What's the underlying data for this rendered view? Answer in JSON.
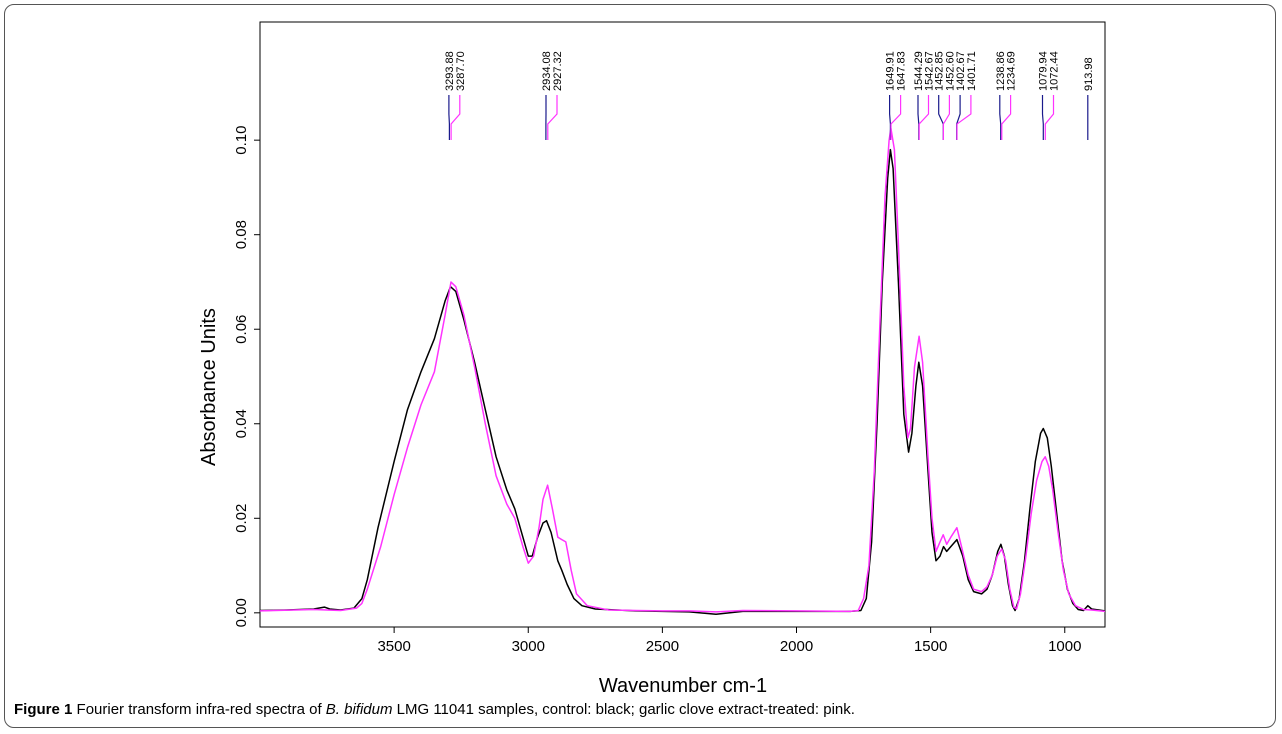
{
  "figure": {
    "label": "Figure 1",
    "caption_pre": " Fourier transform infra-red spectra of ",
    "caption_species": "B. bifidum",
    "caption_post": " LMG 11041 samples, control: black; garlic clove extract-treated: pink."
  },
  "colors": {
    "control": "#000000",
    "treated": "#ff33ff",
    "marker_control": "#1a1a8c"
  },
  "chart_data": {
    "type": "line",
    "xlabel": "Wavenumber cm-1",
    "ylabel": "Absorbance Units",
    "xlim": [
      4000,
      850
    ],
    "ylim": [
      -0.003,
      0.125
    ],
    "xticks": [
      3500,
      3000,
      2500,
      2000,
      1500,
      1000
    ],
    "xtick_labels": [
      "3500",
      "3000",
      "2500",
      "2000",
      "1500",
      "1000"
    ],
    "yticks": [
      0,
      0.02,
      0.04,
      0.06,
      0.08,
      0.1
    ],
    "ytick_labels": [
      "0.00",
      "0.02",
      "0.04",
      "0.06",
      "0.08",
      "0.10"
    ],
    "series": [
      {
        "key": "control",
        "color": "#000000",
        "points": [
          [
            4000,
            0.0005
          ],
          [
            3900,
            0.0006
          ],
          [
            3800,
            0.0008
          ],
          [
            3760,
            0.0012
          ],
          [
            3740,
            0.0008
          ],
          [
            3700,
            0.0006
          ],
          [
            3650,
            0.001
          ],
          [
            3620,
            0.003
          ],
          [
            3600,
            0.007
          ],
          [
            3560,
            0.018
          ],
          [
            3500,
            0.032
          ],
          [
            3450,
            0.043
          ],
          [
            3400,
            0.051
          ],
          [
            3350,
            0.058
          ],
          [
            3310,
            0.066
          ],
          [
            3290,
            0.069
          ],
          [
            3270,
            0.068
          ],
          [
            3240,
            0.062
          ],
          [
            3200,
            0.053
          ],
          [
            3160,
            0.043
          ],
          [
            3120,
            0.033
          ],
          [
            3080,
            0.026
          ],
          [
            3050,
            0.022
          ],
          [
            3020,
            0.016
          ],
          [
            3000,
            0.012
          ],
          [
            2985,
            0.012
          ],
          [
            2965,
            0.016
          ],
          [
            2945,
            0.019
          ],
          [
            2932,
            0.0195
          ],
          [
            2915,
            0.017
          ],
          [
            2890,
            0.011
          ],
          [
            2875,
            0.009
          ],
          [
            2855,
            0.006
          ],
          [
            2830,
            0.003
          ],
          [
            2800,
            0.0015
          ],
          [
            2750,
            0.0008
          ],
          [
            2600,
            0.0004
          ],
          [
            2400,
            0.0002
          ],
          [
            2300,
            -0.0003
          ],
          [
            2200,
            0.0003
          ],
          [
            2000,
            0.0003
          ],
          [
            1800,
            0.0003
          ],
          [
            1760,
            0.0005
          ],
          [
            1740,
            0.003
          ],
          [
            1720,
            0.015
          ],
          [
            1700,
            0.04
          ],
          [
            1680,
            0.07
          ],
          [
            1660,
            0.092
          ],
          [
            1650,
            0.098
          ],
          [
            1640,
            0.094
          ],
          [
            1620,
            0.07
          ],
          [
            1600,
            0.042
          ],
          [
            1582,
            0.034
          ],
          [
            1570,
            0.038
          ],
          [
            1555,
            0.048
          ],
          [
            1544,
            0.053
          ],
          [
            1530,
            0.048
          ],
          [
            1510,
            0.03
          ],
          [
            1495,
            0.017
          ],
          [
            1480,
            0.011
          ],
          [
            1465,
            0.012
          ],
          [
            1452,
            0.014
          ],
          [
            1440,
            0.013
          ],
          [
            1425,
            0.014
          ],
          [
            1402,
            0.0155
          ],
          [
            1380,
            0.012
          ],
          [
            1360,
            0.007
          ],
          [
            1340,
            0.0045
          ],
          [
            1310,
            0.004
          ],
          [
            1290,
            0.005
          ],
          [
            1270,
            0.008
          ],
          [
            1250,
            0.013
          ],
          [
            1238,
            0.0145
          ],
          [
            1225,
            0.012
          ],
          [
            1210,
            0.006
          ],
          [
            1195,
            0.0015
          ],
          [
            1185,
            0.0005
          ],
          [
            1170,
            0.003
          ],
          [
            1150,
            0.011
          ],
          [
            1130,
            0.022
          ],
          [
            1110,
            0.032
          ],
          [
            1090,
            0.038
          ],
          [
            1080,
            0.039
          ],
          [
            1065,
            0.037
          ],
          [
            1050,
            0.031
          ],
          [
            1030,
            0.021
          ],
          [
            1010,
            0.011
          ],
          [
            990,
            0.005
          ],
          [
            970,
            0.002
          ],
          [
            950,
            0.0007
          ],
          [
            930,
            0.0005
          ],
          [
            914,
            0.0015
          ],
          [
            900,
            0.0008
          ],
          [
            850,
            0.0004
          ]
        ]
      },
      {
        "key": "treated",
        "color": "#ff33ff",
        "points": [
          [
            4000,
            0.0004
          ],
          [
            3800,
            0.0007
          ],
          [
            3700,
            0.0005
          ],
          [
            3640,
            0.001
          ],
          [
            3620,
            0.002
          ],
          [
            3600,
            0.005
          ],
          [
            3550,
            0.014
          ],
          [
            3500,
            0.025
          ],
          [
            3450,
            0.035
          ],
          [
            3400,
            0.044
          ],
          [
            3350,
            0.051
          ],
          [
            3310,
            0.063
          ],
          [
            3288,
            0.07
          ],
          [
            3270,
            0.069
          ],
          [
            3240,
            0.063
          ],
          [
            3200,
            0.052
          ],
          [
            3160,
            0.04
          ],
          [
            3120,
            0.029
          ],
          [
            3080,
            0.023
          ],
          [
            3050,
            0.02
          ],
          [
            3020,
            0.014
          ],
          [
            3000,
            0.0105
          ],
          [
            2980,
            0.012
          ],
          [
            2960,
            0.018
          ],
          [
            2945,
            0.024
          ],
          [
            2928,
            0.027
          ],
          [
            2910,
            0.022
          ],
          [
            2890,
            0.016
          ],
          [
            2875,
            0.0155
          ],
          [
            2860,
            0.015
          ],
          [
            2840,
            0.009
          ],
          [
            2820,
            0.004
          ],
          [
            2780,
            0.0015
          ],
          [
            2700,
            0.0006
          ],
          [
            2500,
            0.0004
          ],
          [
            2400,
            0.0004
          ],
          [
            2300,
            0.0002
          ],
          [
            2200,
            0.0005
          ],
          [
            2000,
            0.0004
          ],
          [
            1800,
            0.0003
          ],
          [
            1770,
            0.0005
          ],
          [
            1750,
            0.003
          ],
          [
            1730,
            0.01
          ],
          [
            1710,
            0.03
          ],
          [
            1690,
            0.06
          ],
          [
            1670,
            0.088
          ],
          [
            1655,
            0.1
          ],
          [
            1648,
            0.1025
          ],
          [
            1635,
            0.098
          ],
          [
            1620,
            0.078
          ],
          [
            1600,
            0.048
          ],
          [
            1585,
            0.037
          ],
          [
            1575,
            0.039
          ],
          [
            1560,
            0.052
          ],
          [
            1543,
            0.0585
          ],
          [
            1530,
            0.053
          ],
          [
            1510,
            0.033
          ],
          [
            1495,
            0.02
          ],
          [
            1480,
            0.013
          ],
          [
            1465,
            0.015
          ],
          [
            1453,
            0.0165
          ],
          [
            1440,
            0.0145
          ],
          [
            1425,
            0.016
          ],
          [
            1402,
            0.018
          ],
          [
            1385,
            0.014
          ],
          [
            1360,
            0.008
          ],
          [
            1340,
            0.005
          ],
          [
            1310,
            0.0045
          ],
          [
            1290,
            0.0055
          ],
          [
            1270,
            0.008
          ],
          [
            1252,
            0.012
          ],
          [
            1235,
            0.0135
          ],
          [
            1220,
            0.011
          ],
          [
            1205,
            0.005
          ],
          [
            1190,
            0.0012
          ],
          [
            1180,
            0.0008
          ],
          [
            1165,
            0.004
          ],
          [
            1145,
            0.012
          ],
          [
            1125,
            0.021
          ],
          [
            1105,
            0.028
          ],
          [
            1085,
            0.032
          ],
          [
            1073,
            0.033
          ],
          [
            1060,
            0.031
          ],
          [
            1045,
            0.026
          ],
          [
            1025,
            0.017
          ],
          [
            1005,
            0.009
          ],
          [
            985,
            0.004
          ],
          [
            960,
            0.0015
          ],
          [
            930,
            0.0007
          ],
          [
            900,
            0.0006
          ],
          [
            850,
            0.0003
          ]
        ]
      }
    ],
    "peak_labels": [
      {
        "text": "3293.88",
        "wavenumber": 3293.88,
        "label_wavenumber": 3296,
        "series": "control"
      },
      {
        "text": "3287.70",
        "wavenumber": 3287.7,
        "label_wavenumber": 3255,
        "series": "treated"
      },
      {
        "text": "2934.08",
        "wavenumber": 2934.08,
        "label_wavenumber": 2934,
        "series": "control"
      },
      {
        "text": "2927.32",
        "wavenumber": 2927.32,
        "label_wavenumber": 2893,
        "series": "treated"
      },
      {
        "text": "1649.91",
        "wavenumber": 1649.91,
        "label_wavenumber": 1653,
        "series": "control"
      },
      {
        "text": "1647.83",
        "wavenumber": 1647.83,
        "label_wavenumber": 1612,
        "series": "treated"
      },
      {
        "text": "1544.29",
        "wavenumber": 1544.29,
        "label_wavenumber": 1547,
        "series": "control"
      },
      {
        "text": "1542.67",
        "wavenumber": 1542.67,
        "label_wavenumber": 1508,
        "series": "treated"
      },
      {
        "text": "1452.85",
        "wavenumber": 1452.85,
        "label_wavenumber": 1470,
        "series": "control"
      },
      {
        "text": "1452.60",
        "wavenumber": 1452.6,
        "label_wavenumber": 1430,
        "series": "treated"
      },
      {
        "text": "1402.67",
        "wavenumber": 1402.67,
        "label_wavenumber": 1390,
        "series": "control"
      },
      {
        "text": "1401.71",
        "wavenumber": 1401.71,
        "label_wavenumber": 1350,
        "series": "treated"
      },
      {
        "text": "1238.86",
        "wavenumber": 1238.86,
        "label_wavenumber": 1242,
        "series": "control"
      },
      {
        "text": "1234.69",
        "wavenumber": 1234.69,
        "label_wavenumber": 1202,
        "series": "treated"
      },
      {
        "text": "1079.94",
        "wavenumber": 1079.94,
        "label_wavenumber": 1083,
        "series": "control"
      },
      {
        "text": "1072.44",
        "wavenumber": 1072.44,
        "label_wavenumber": 1042,
        "series": "treated"
      },
      {
        "text": "913.98",
        "wavenumber": 913.98,
        "label_wavenumber": 914,
        "series": "control"
      }
    ]
  }
}
